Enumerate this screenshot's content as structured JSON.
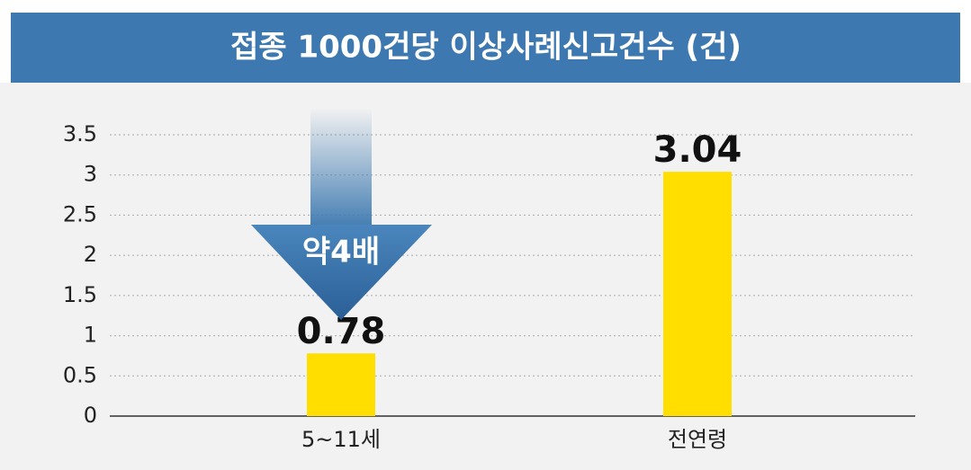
{
  "chart_data": {
    "type": "bar",
    "title": "접종 1000건당 이상사례신고건수 (건)",
    "categories": [
      "5~11세",
      "전연령"
    ],
    "values": [
      0.78,
      3.04
    ],
    "color": "#ffde00",
    "ylim": [
      0,
      3.5
    ],
    "yticks": [
      0,
      0.5,
      1,
      1.5,
      2,
      2.5,
      3,
      3.5
    ],
    "grid": true,
    "annotation": "약4배"
  }
}
